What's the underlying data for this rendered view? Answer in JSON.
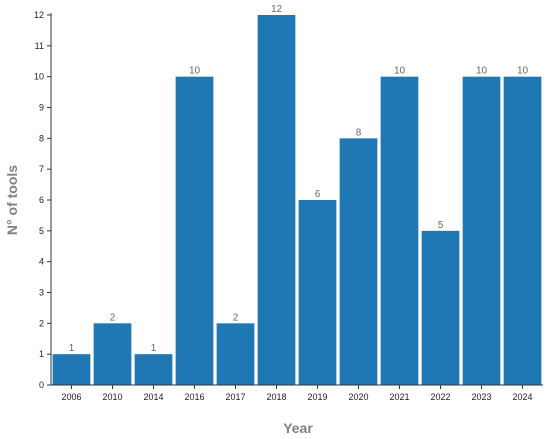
{
  "chart_data": {
    "type": "bar",
    "title": "",
    "xlabel": "Year",
    "ylabel": "N° of tools",
    "categories": [
      "2006",
      "2010",
      "2014",
      "2016",
      "2017",
      "2018",
      "2019",
      "2020",
      "2021",
      "2022",
      "2023",
      "2024"
    ],
    "values": [
      1,
      2,
      1,
      10,
      2,
      12,
      6,
      8,
      10,
      5,
      10,
      10
    ],
    "ylim": [
      0,
      12
    ],
    "yticks": [
      "0",
      "1",
      "2",
      "3",
      "4",
      "5",
      "6",
      "7",
      "8",
      "9",
      "10",
      "11",
      "12"
    ],
    "grid": false,
    "legend": "none",
    "bar_color": "#1f77b4"
  }
}
